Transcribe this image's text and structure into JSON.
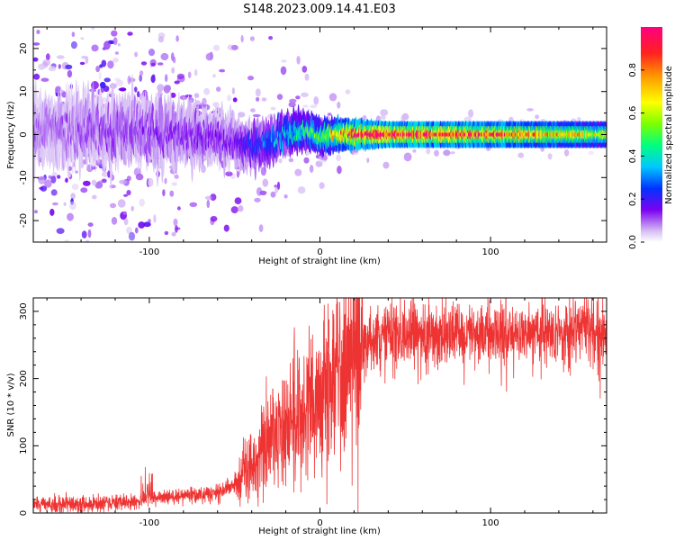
{
  "title": "S148.2023.009.14.41.E03",
  "chart_data": [
    {
      "type": "heatmap",
      "xlabel": "Height of straight line (km)",
      "ylabel": "Frequency (Hz)",
      "xlim": [
        -168,
        168
      ],
      "ylim": [
        -25,
        25
      ],
      "x_ticks": [
        -100,
        0,
        100
      ],
      "y_ticks": [
        -20,
        -10,
        0,
        10,
        20
      ],
      "colorbar": {
        "label": "Normalized spectral amplitude",
        "range": [
          0,
          1
        ],
        "ticks": [
          0,
          0.2,
          0.4,
          0.6,
          0.8
        ],
        "colors": [
          "#ffffff",
          "#c9a7f2",
          "#7b00f0",
          "#0033ff",
          "#00c8ff",
          "#00ff80",
          "#7cff00",
          "#ffff00",
          "#ff9900",
          "#ff2020",
          "#ff0080"
        ]
      },
      "description_points": {
        "ridge_center_hz": [
          [
            -168,
            1
          ],
          [
            -120,
            1
          ],
          [
            -80,
            0
          ],
          [
            -50,
            -1.5
          ],
          [
            -38,
            -3
          ],
          [
            -30,
            -1.5
          ],
          [
            -20,
            0
          ],
          [
            -5,
            0.5
          ],
          [
            0,
            -1
          ],
          [
            5,
            0
          ],
          [
            20,
            0
          ],
          [
            100,
            0
          ],
          [
            168,
            0
          ]
        ],
        "ridge_peak_amplitude": [
          [
            -168,
            0.1
          ],
          [
            -50,
            0.15
          ],
          [
            -30,
            0.3
          ],
          [
            0,
            0.5
          ],
          [
            20,
            0.95
          ],
          [
            60,
            0.9
          ],
          [
            100,
            0.85
          ],
          [
            168,
            0.6
          ]
        ]
      }
    },
    {
      "type": "line",
      "xlabel": "Height of straight line (km)",
      "ylabel": "SNR (10 * v/v)",
      "xlim": [
        -168,
        168
      ],
      "ylim": [
        0,
        320
      ],
      "x_ticks": [
        -100,
        0,
        100
      ],
      "y_ticks": [
        0,
        100,
        200,
        300
      ],
      "series_color": "#ee3333",
      "trend": {
        "x": [
          -168,
          -120,
          -100,
          -80,
          -60,
          -50,
          -40,
          -30,
          -20,
          -10,
          0,
          10,
          20,
          30,
          50,
          100,
          168
        ],
        "y": [
          12,
          15,
          20,
          25,
          30,
          40,
          70,
          110,
          130,
          150,
          180,
          200,
          240,
          260,
          265,
          265,
          270
        ]
      }
    }
  ]
}
